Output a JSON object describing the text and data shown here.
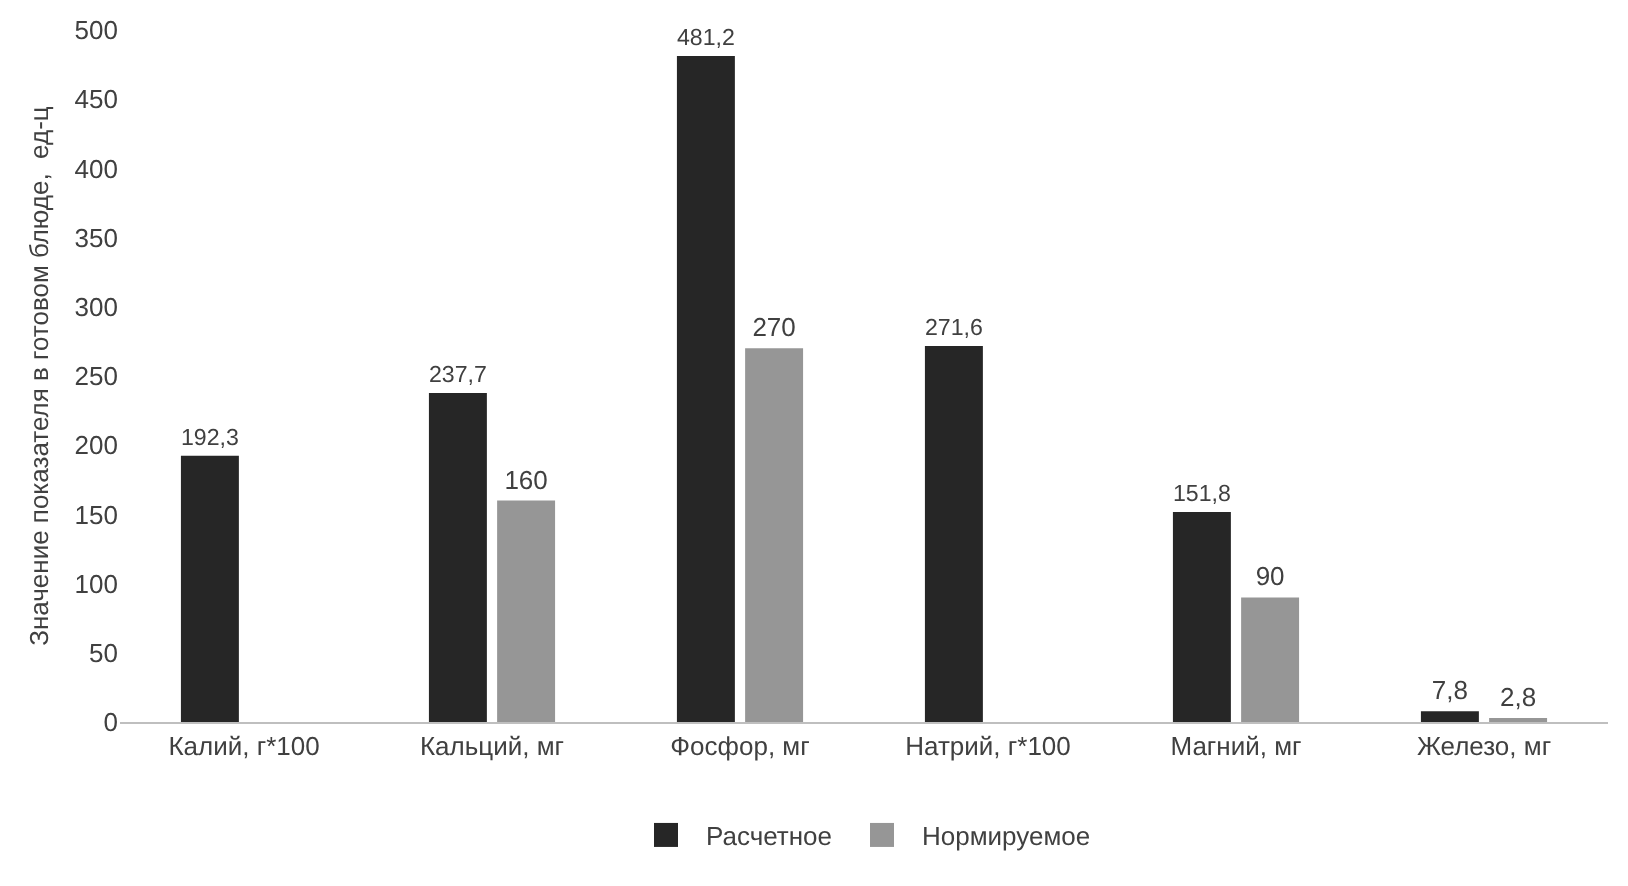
{
  "chart_data": {
    "type": "bar",
    "ylabel": "Значение показателя в готовом блюде,  ед-ц",
    "categories": [
      "Калий, г*100",
      "Кальций, мг",
      "Фосфор, мг",
      "Натрий, г*100",
      "Магний, мг",
      "Железо, мг"
    ],
    "series": [
      {
        "name": "Расчетное",
        "color": "#262626",
        "values": [
          192.3,
          237.7,
          481.2,
          271.6,
          151.8,
          7.8
        ],
        "value_labels": [
          "192,3",
          "237,7",
          "481,2",
          "271,6",
          "151,8",
          "7,8"
        ]
      },
      {
        "name": "Нормируемое",
        "color": "#969696",
        "values": [
          null,
          160,
          270,
          null,
          90,
          2.8
        ],
        "value_labels": [
          null,
          "160",
          "270",
          null,
          "90",
          "2,8"
        ]
      }
    ],
    "ylim": [
      0,
      500
    ],
    "yticks": [
      0,
      50,
      100,
      150,
      200,
      250,
      300,
      350,
      400,
      450,
      500
    ],
    "grid": false,
    "legend": "bottom"
  }
}
